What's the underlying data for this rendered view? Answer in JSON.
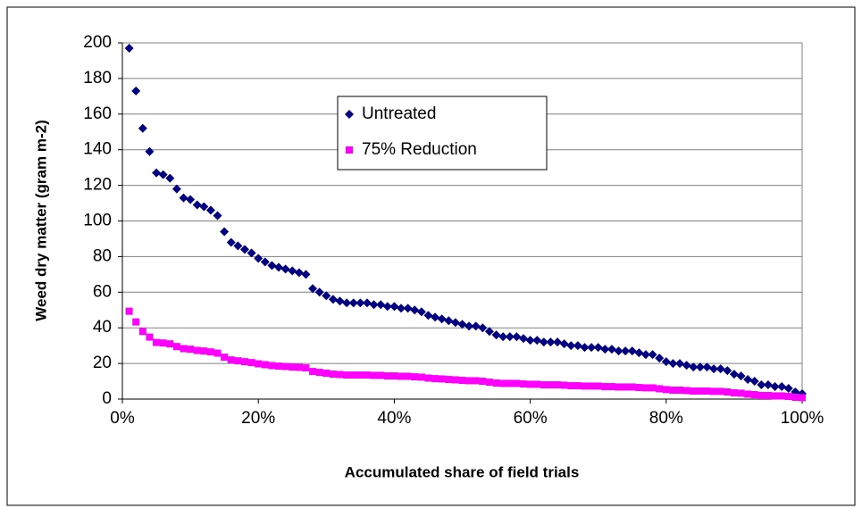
{
  "chart_data": {
    "type": "scatter",
    "x_label": "Accumulated share of field trials",
    "y_label": "Weed dry matter (gram m-2)",
    "x": [
      1,
      2,
      3,
      4,
      5,
      6,
      7,
      8,
      9,
      10,
      11,
      12,
      13,
      14,
      15,
      16,
      17,
      18,
      19,
      20,
      21,
      22,
      23,
      24,
      25,
      26,
      27,
      28,
      29,
      30,
      31,
      32,
      33,
      34,
      35,
      36,
      37,
      38,
      39,
      40,
      41,
      42,
      43,
      44,
      45,
      46,
      47,
      48,
      49,
      50,
      51,
      52,
      53,
      54,
      55,
      56,
      57,
      58,
      59,
      60,
      61,
      62,
      63,
      64,
      65,
      66,
      67,
      68,
      69,
      70,
      71,
      72,
      73,
      74,
      75,
      76,
      77,
      78,
      79,
      80,
      81,
      82,
      83,
      84,
      85,
      86,
      87,
      88,
      89,
      90,
      91,
      92,
      93,
      94,
      95,
      96,
      97,
      98,
      99,
      100
    ],
    "series": [
      {
        "name": "Untreated",
        "color": "#000080",
        "marker": "diamond",
        "values": [
          197,
          173,
          152,
          139,
          127,
          126,
          124,
          118,
          113,
          112,
          109,
          108,
          106,
          103,
          94,
          88,
          86,
          84,
          82,
          79,
          77,
          75,
          74,
          73,
          72,
          71,
          70,
          62,
          60,
          58,
          56,
          55,
          54,
          54,
          54,
          54,
          53,
          53,
          52,
          52,
          51,
          51,
          50,
          49,
          47,
          46,
          45,
          44,
          43,
          42,
          41,
          41,
          40,
          38,
          36,
          35,
          35,
          35,
          34,
          33,
          33,
          32,
          32,
          32,
          31,
          30,
          30,
          29,
          29,
          29,
          28,
          28,
          27,
          27,
          27,
          26,
          25,
          25,
          23,
          21,
          20,
          20,
          19,
          18,
          18,
          18,
          17,
          17,
          16,
          14,
          13,
          11,
          10,
          8,
          8,
          7,
          7,
          6,
          4,
          3
        ]
      },
      {
        "name": "75% Reduction",
        "color": "#FF00FF",
        "marker": "square",
        "values": [
          49.3,
          43.3,
          38,
          34.8,
          31.8,
          31.5,
          31,
          29.5,
          28.3,
          28,
          27.3,
          27,
          26.5,
          25.8,
          23.5,
          22,
          21.5,
          21,
          20.5,
          19.8,
          19.3,
          18.8,
          18.5,
          18.3,
          18,
          17.8,
          17.5,
          15.5,
          15,
          14.5,
          14,
          13.8,
          13.5,
          13.5,
          13.5,
          13.5,
          13.3,
          13.3,
          13,
          13,
          12.8,
          12.8,
          12.5,
          12.3,
          11.8,
          11.5,
          11.3,
          11,
          10.8,
          10.5,
          10.3,
          10.3,
          10,
          9.5,
          9,
          8.8,
          8.8,
          8.8,
          8.5,
          8.3,
          8.3,
          8,
          8,
          8,
          7.8,
          7.5,
          7.5,
          7.3,
          7.3,
          7.3,
          7,
          7,
          6.8,
          6.8,
          6.8,
          6.5,
          6.3,
          6.3,
          5.8,
          5.3,
          5,
          5,
          4.8,
          4.5,
          4.5,
          4.5,
          4.3,
          4.3,
          4,
          3.5,
          3.3,
          2.8,
          2.5,
          2,
          2,
          1.8,
          1.8,
          1.5,
          1,
          0.8
        ]
      }
    ],
    "xlim": [
      0,
      100
    ],
    "xticks": [
      {
        "value": 0,
        "label": "0%"
      },
      {
        "value": 20,
        "label": "20%"
      },
      {
        "value": 40,
        "label": "40%"
      },
      {
        "value": 60,
        "label": "60%"
      },
      {
        "value": 80,
        "label": "80%"
      },
      {
        "value": 100,
        "label": "100%"
      }
    ],
    "ylim": [
      0,
      200
    ],
    "yticks": [
      0,
      20,
      40,
      60,
      80,
      100,
      120,
      140,
      160,
      180,
      200
    ],
    "grid": true,
    "legend_position": "top"
  }
}
